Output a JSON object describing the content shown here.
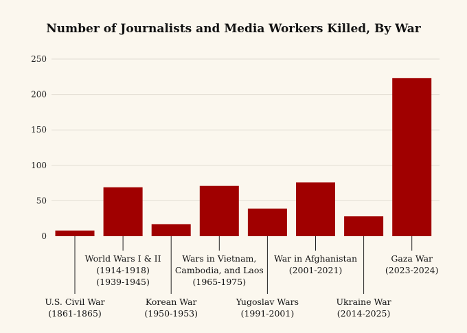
{
  "chart_data": {
    "type": "bar",
    "title": "Number of Journalists and Media Workers Killed, By War",
    "xlabel": "",
    "ylabel": "",
    "ylim": [
      0,
      250
    ],
    "yticks": [
      0,
      50,
      100,
      150,
      200,
      250
    ],
    "grid": true,
    "bar_color": "#a00000",
    "categories": [
      "U.S. Civil War (1861-1865)",
      "World Wars I & II (1914-1918) (1939-1945)",
      "Korean War (1950-1953)",
      "Wars in Vietnam, Cambodia, and Laos (1965-1975)",
      "Yugoslav Wars (1991-2001)",
      "War in Afghanistan (2001-2021)",
      "Ukraine War (2014-2025)",
      "Gaza War (2023-2024)"
    ],
    "category_lines": [
      [
        "U.S. Civil War",
        "(1861-1865)"
      ],
      [
        "World Wars I & II",
        "(1914-1918)",
        "(1939-1945)"
      ],
      [
        "Korean War",
        "(1950-1953)"
      ],
      [
        "Wars in Vietnam,",
        "Cambodia, and Laos",
        "(1965-1975)"
      ],
      [
        "Yugoslav Wars",
        "(1991-2001)"
      ],
      [
        "War in Afghanistan",
        "(2001-2021)"
      ],
      [
        "Ukraine War",
        "(2014-2025)"
      ],
      [
        "Gaza War",
        "(2023-2024)"
      ]
    ],
    "values": [
      8,
      69,
      17,
      71,
      39,
      76,
      28,
      223
    ]
  }
}
